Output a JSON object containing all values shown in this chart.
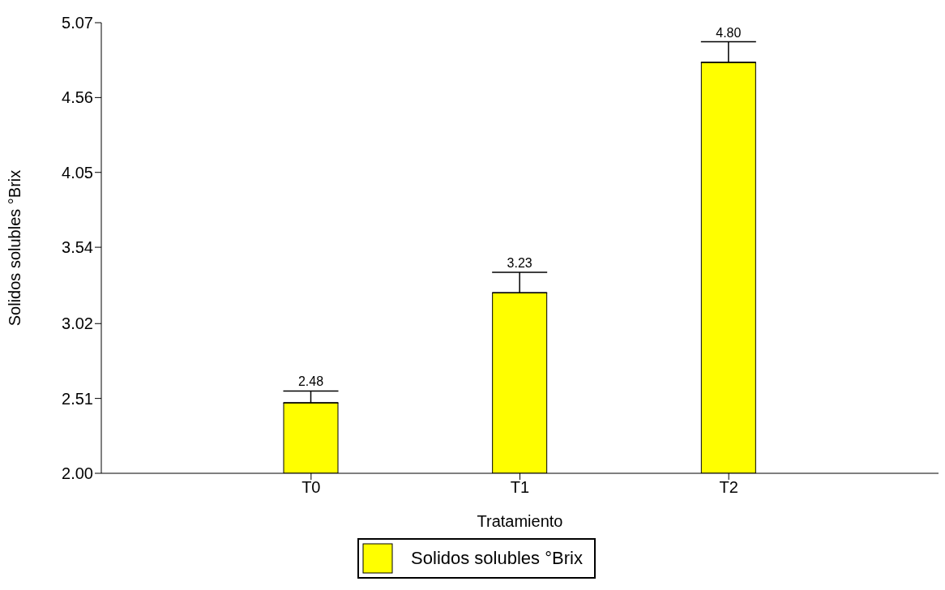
{
  "chart_data": {
    "type": "bar",
    "xlabel": "Tratamiento",
    "ylabel": "Solidos solubles °Brix",
    "categories": [
      "T0",
      "T1",
      "T2"
    ],
    "series": [
      {
        "name": "Solidos solubles °Brix",
        "color": "#ffff00",
        "values": [
          2.48,
          3.23,
          4.8
        ],
        "value_labels": [
          "2.48",
          "3.23",
          "4.80"
        ],
        "errors": [
          [
            2.48,
            2.56
          ],
          [
            3.23,
            3.37
          ],
          [
            4.8,
            4.94
          ]
        ]
      }
    ],
    "ylim": [
      2,
      5.07
    ],
    "yticks": [
      {
        "value": 2,
        "label": "2.00"
      },
      2.51,
      3.02,
      3.54,
      4.05,
      4.56,
      5.07
    ],
    "grid": false,
    "legend": "bottom"
  }
}
